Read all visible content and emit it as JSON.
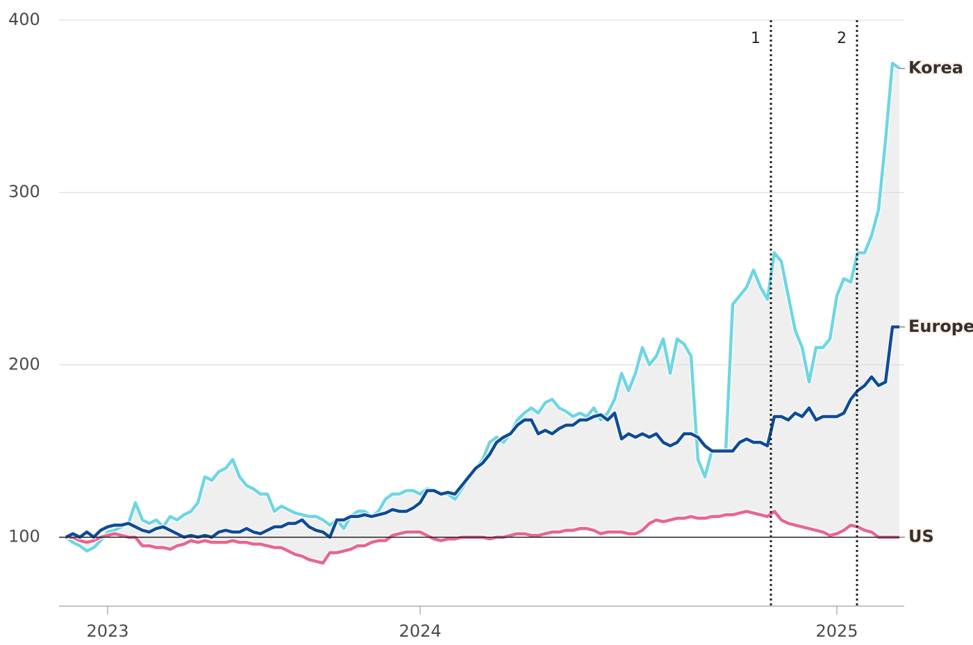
{
  "chart_data": {
    "type": "line",
    "x": [
      0,
      1,
      2,
      3,
      4,
      5,
      6,
      7,
      8,
      9,
      10,
      11,
      12,
      13,
      14,
      15,
      16,
      17,
      18,
      19,
      20,
      21,
      22,
      23,
      24,
      25,
      26,
      27,
      28,
      29,
      30,
      31,
      32,
      33,
      34,
      35,
      36,
      37,
      38,
      39,
      40,
      41,
      42,
      43,
      44,
      45,
      46,
      47,
      48,
      49,
      50,
      51,
      52,
      53,
      54,
      55,
      56,
      57,
      58,
      59,
      60,
      61,
      62,
      63,
      64,
      65,
      66,
      67,
      68,
      69,
      70,
      71,
      72,
      73,
      74,
      75,
      76,
      77,
      78,
      79,
      80,
      81,
      82,
      83,
      84,
      85,
      86,
      87,
      88,
      89,
      90,
      91,
      92,
      93,
      94,
      95,
      96,
      97,
      98,
      99,
      100,
      101,
      102,
      103,
      104,
      105,
      106,
      107,
      108,
      109,
      110,
      111,
      112,
      113,
      114,
      115,
      116,
      117,
      118,
      119,
      120
    ],
    "series": [
      {
        "name": "Korea",
        "color": "#6dd6e3",
        "values": [
          100,
          97,
          95,
          92,
          94,
          98,
          103,
          104,
          106,
          108,
          120,
          110,
          108,
          110,
          106,
          112,
          110,
          113,
          115,
          120,
          135,
          133,
          138,
          140,
          145,
          135,
          130,
          128,
          125,
          125,
          115,
          118,
          116,
          114,
          113,
          112,
          112,
          110,
          107,
          110,
          105,
          112,
          115,
          115,
          112,
          115,
          122,
          125,
          125,
          127,
          127,
          125,
          128,
          127,
          125,
          125,
          122,
          128,
          135,
          140,
          145,
          155,
          158,
          155,
          160,
          168,
          172,
          175,
          172,
          178,
          180,
          175,
          173,
          170,
          172,
          170,
          175,
          168,
          172,
          180,
          195,
          185,
          195,
          210,
          200,
          205,
          215,
          195,
          215,
          212,
          205,
          145,
          135,
          150,
          150,
          150,
          235,
          240,
          245,
          255,
          245,
          238,
          265,
          260,
          240,
          220,
          210,
          190,
          210,
          210,
          215,
          240,
          250,
          248,
          265,
          265,
          275,
          290,
          330,
          375,
          372
        ]
      },
      {
        "name": "Europe",
        "color": "#0f4c96",
        "values": [
          100,
          102,
          100,
          103,
          100,
          104,
          106,
          107,
          107,
          108,
          106,
          104,
          103,
          105,
          106,
          104,
          102,
          100,
          101,
          100,
          101,
          100,
          103,
          104,
          103,
          103,
          105,
          103,
          102,
          104,
          106,
          106,
          108,
          108,
          110,
          106,
          104,
          103,
          100,
          110,
          110,
          112,
          112,
          113,
          112,
          113,
          114,
          116,
          115,
          115,
          117,
          120,
          127,
          127,
          125,
          126,
          125,
          130,
          135,
          140,
          143,
          148,
          155,
          158,
          160,
          165,
          168,
          168,
          160,
          162,
          160,
          163,
          165,
          165,
          168,
          168,
          170,
          171,
          168,
          172,
          157,
          160,
          158,
          160,
          158,
          160,
          155,
          153,
          155,
          160,
          160,
          158,
          153,
          150,
          150,
          150,
          150,
          155,
          157,
          155,
          155,
          153,
          170,
          170,
          168,
          172,
          170,
          175,
          168,
          170,
          170,
          170,
          172,
          180,
          185,
          188,
          193,
          188,
          190,
          222,
          222
        ]
      },
      {
        "name": "US",
        "color": "#e8668e",
        "values": [
          100,
          100,
          98,
          97,
          98,
          100,
          101,
          102,
          101,
          100,
          100,
          95,
          95,
          94,
          94,
          93,
          95,
          96,
          98,
          97,
          98,
          97,
          97,
          97,
          98,
          97,
          97,
          96,
          96,
          95,
          94,
          94,
          92,
          90,
          89,
          87,
          86,
          85,
          91,
          91,
          92,
          93,
          95,
          95,
          97,
          98,
          98,
          101,
          102,
          103,
          103,
          103,
          101,
          99,
          98,
          99,
          99,
          100,
          100,
          100,
          100,
          99,
          100,
          100,
          101,
          102,
          102,
          101,
          101,
          102,
          103,
          103,
          104,
          104,
          105,
          105,
          104,
          102,
          103,
          103,
          103,
          102,
          102,
          104,
          108,
          110,
          109,
          110,
          111,
          111,
          112,
          111,
          111,
          112,
          112,
          113,
          113,
          114,
          115,
          114,
          113,
          112,
          115,
          110,
          108,
          107,
          106,
          105,
          104,
          103,
          101,
          102,
          104,
          107,
          106,
          104,
          103,
          100,
          100,
          100,
          100
        ]
      }
    ],
    "xlim": [
      -1,
      120.7
    ],
    "xticks": [
      {
        "value": 6,
        "label": "2023"
      },
      {
        "value": 51,
        "label": "2024"
      },
      {
        "value": 111,
        "label": "2025"
      }
    ],
    "ylim": [
      60,
      400
    ],
    "yticks": [
      100,
      200,
      300,
      400
    ],
    "grid": true,
    "baseline": 100,
    "annotations": [
      {
        "label": "1",
        "x": 101.5
      },
      {
        "label": "2",
        "x": 113.9
      }
    ]
  }
}
